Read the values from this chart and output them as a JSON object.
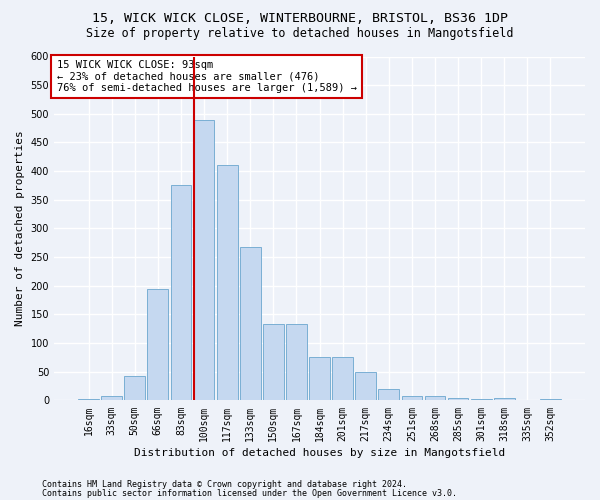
{
  "title_line1": "15, WICK WICK CLOSE, WINTERBOURNE, BRISTOL, BS36 1DP",
  "title_line2": "Size of property relative to detached houses in Mangotsfield",
  "xlabel": "Distribution of detached houses by size in Mangotsfield",
  "ylabel": "Number of detached properties",
  "categories": [
    "16sqm",
    "33sqm",
    "50sqm",
    "66sqm",
    "83sqm",
    "100sqm",
    "117sqm",
    "133sqm",
    "150sqm",
    "167sqm",
    "184sqm",
    "201sqm",
    "217sqm",
    "234sqm",
    "251sqm",
    "268sqm",
    "285sqm",
    "301sqm",
    "318sqm",
    "335sqm",
    "352sqm"
  ],
  "values": [
    3,
    8,
    42,
    195,
    375,
    490,
    410,
    268,
    133,
    133,
    75,
    75,
    50,
    20,
    8,
    7,
    5,
    3,
    4,
    1,
    2
  ],
  "bar_color": "#c5d8f0",
  "bar_edge_color": "#7aafd4",
  "vline_color": "#cc0000",
  "vline_x": 4.55,
  "annotation_text_line1": "15 WICK WICK CLOSE: 93sqm",
  "annotation_text_line2": "← 23% of detached houses are smaller (476)",
  "annotation_text_line3": "76% of semi-detached houses are larger (1,589) →",
  "annotation_box_color": "#ffffff",
  "annotation_box_edge": "#cc0000",
  "ylim": [
    0,
    600
  ],
  "yticks": [
    0,
    50,
    100,
    150,
    200,
    250,
    300,
    350,
    400,
    450,
    500,
    550,
    600
  ],
  "footer_line1": "Contains HM Land Registry data © Crown copyright and database right 2024.",
  "footer_line2": "Contains public sector information licensed under the Open Government Licence v3.0.",
  "bg_color": "#eef2f9",
  "plot_bg_color": "#eef2f9",
  "grid_color": "#ffffff",
  "title_fontsize": 9.5,
  "subtitle_fontsize": 8.5,
  "xlabel_fontsize": 8,
  "ylabel_fontsize": 8,
  "tick_fontsize": 7,
  "annotation_fontsize": 7.5,
  "footer_fontsize": 6
}
